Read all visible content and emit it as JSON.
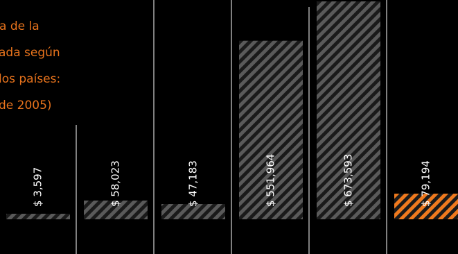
{
  "chart_data": {
    "type": "bar",
    "title_lines": [
      "a de la",
      "ada según",
      "los países:",
      "de 2005)"
    ],
    "values": [
      3597,
      58023,
      47183,
      551964,
      673593,
      79194
    ],
    "labels": [
      "$ 3,597",
      "$ 58,023",
      "$ 47,183",
      "$ 551,964",
      "$ 673,593",
      "$ 79,194"
    ],
    "highlight_index": 5,
    "colors": {
      "background": "#000000",
      "bar_stripe_dark": "#1a1a1a",
      "bar_stripe_light": "#5a5a5a",
      "highlight_dark": "#1a1a1a",
      "highlight_light": "#f07a1e",
      "title": "#e8731c",
      "divider": "#ffffff",
      "label": "#ffffff"
    }
  }
}
